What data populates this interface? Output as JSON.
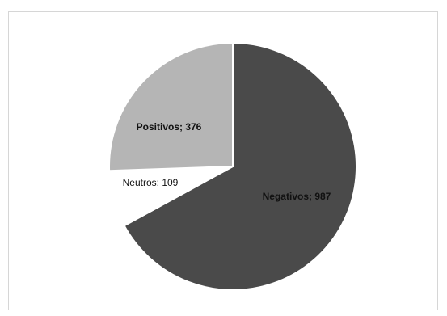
{
  "chart_data": {
    "type": "pie",
    "title": "",
    "slices": [
      {
        "name": "Negativos",
        "value": 987,
        "label": "Negativos; 987",
        "color": "#4a4a4a"
      },
      {
        "name": "Neutros",
        "value": 109,
        "label": "Neutros; 109",
        "color": "#ffffff"
      },
      {
        "name": "Positivos",
        "value": 376,
        "label": "Positivos; 376",
        "color": "#b5b5b5"
      }
    ],
    "start_angle_deg": 0,
    "direction": "clockwise",
    "legend": "none",
    "data_labels": "category; value"
  }
}
